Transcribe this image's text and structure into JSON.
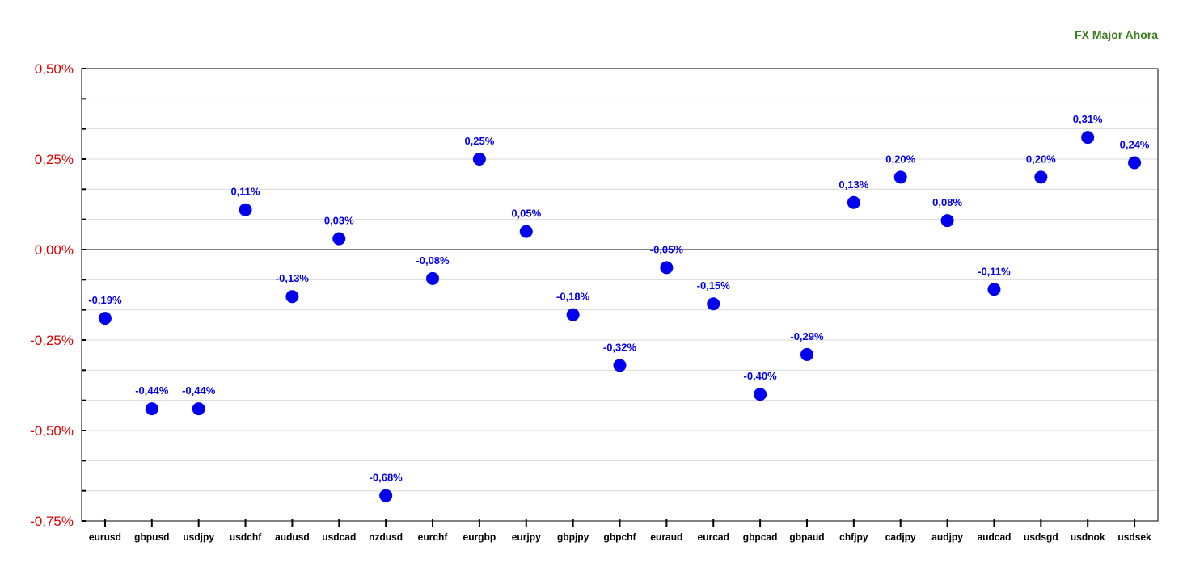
{
  "chart_data": {
    "type": "scatter",
    "title": "FX Major Ahora",
    "xlabel": "",
    "ylabel": "",
    "ylim": [
      -0.75,
      0.5
    ],
    "yticks": [
      {
        "value": 0.5,
        "label": "0,50%"
      },
      {
        "value": 0.25,
        "label": "0,25%"
      },
      {
        "value": 0.0,
        "label": "0,00%"
      },
      {
        "value": -0.25,
        "label": "-0,25%"
      },
      {
        "value": -0.5,
        "label": "-0,50%"
      },
      {
        "value": -0.75,
        "label": "-0,75%"
      }
    ],
    "categories": [
      "eurusd",
      "gbpusd",
      "usdjpy",
      "usdchf",
      "audusd",
      "usdcad",
      "nzdusd",
      "eurchf",
      "eurgbp",
      "eurjpy",
      "gbpjpy",
      "gbpchf",
      "euraud",
      "eurcad",
      "gbpcad",
      "gbpaud",
      "chfjpy",
      "cadjpy",
      "audjpy",
      "audcad",
      "usdsgd",
      "usdnok",
      "usdsek"
    ],
    "values": [
      -0.19,
      -0.44,
      -0.44,
      0.11,
      -0.13,
      0.03,
      -0.68,
      -0.08,
      0.25,
      0.05,
      -0.18,
      -0.32,
      -0.05,
      -0.15,
      -0.4,
      -0.29,
      0.13,
      0.2,
      0.08,
      -0.11,
      0.2,
      0.31,
      0.24
    ],
    "data_labels": [
      "-0,19%",
      "-0,44%",
      "-0,44%",
      "0,11%",
      "-0,13%",
      "0,03%",
      "-0,68%",
      "-0,08%",
      "0,25%",
      "0,05%",
      "-0,18%",
      "-0,32%",
      "-0,05%",
      "-0,15%",
      "-0,40%",
      "-0,29%",
      "0,13%",
      "0,20%",
      "0,08%",
      "-0,11%",
      "0,20%",
      "0,31%",
      "0,24%"
    ],
    "grid": true,
    "colors": {
      "point": "#0000ee",
      "ytick_label": "#e00000",
      "title": "#3a7d1a",
      "grid": "#d9d9d9",
      "zero_line": "#000000"
    }
  }
}
